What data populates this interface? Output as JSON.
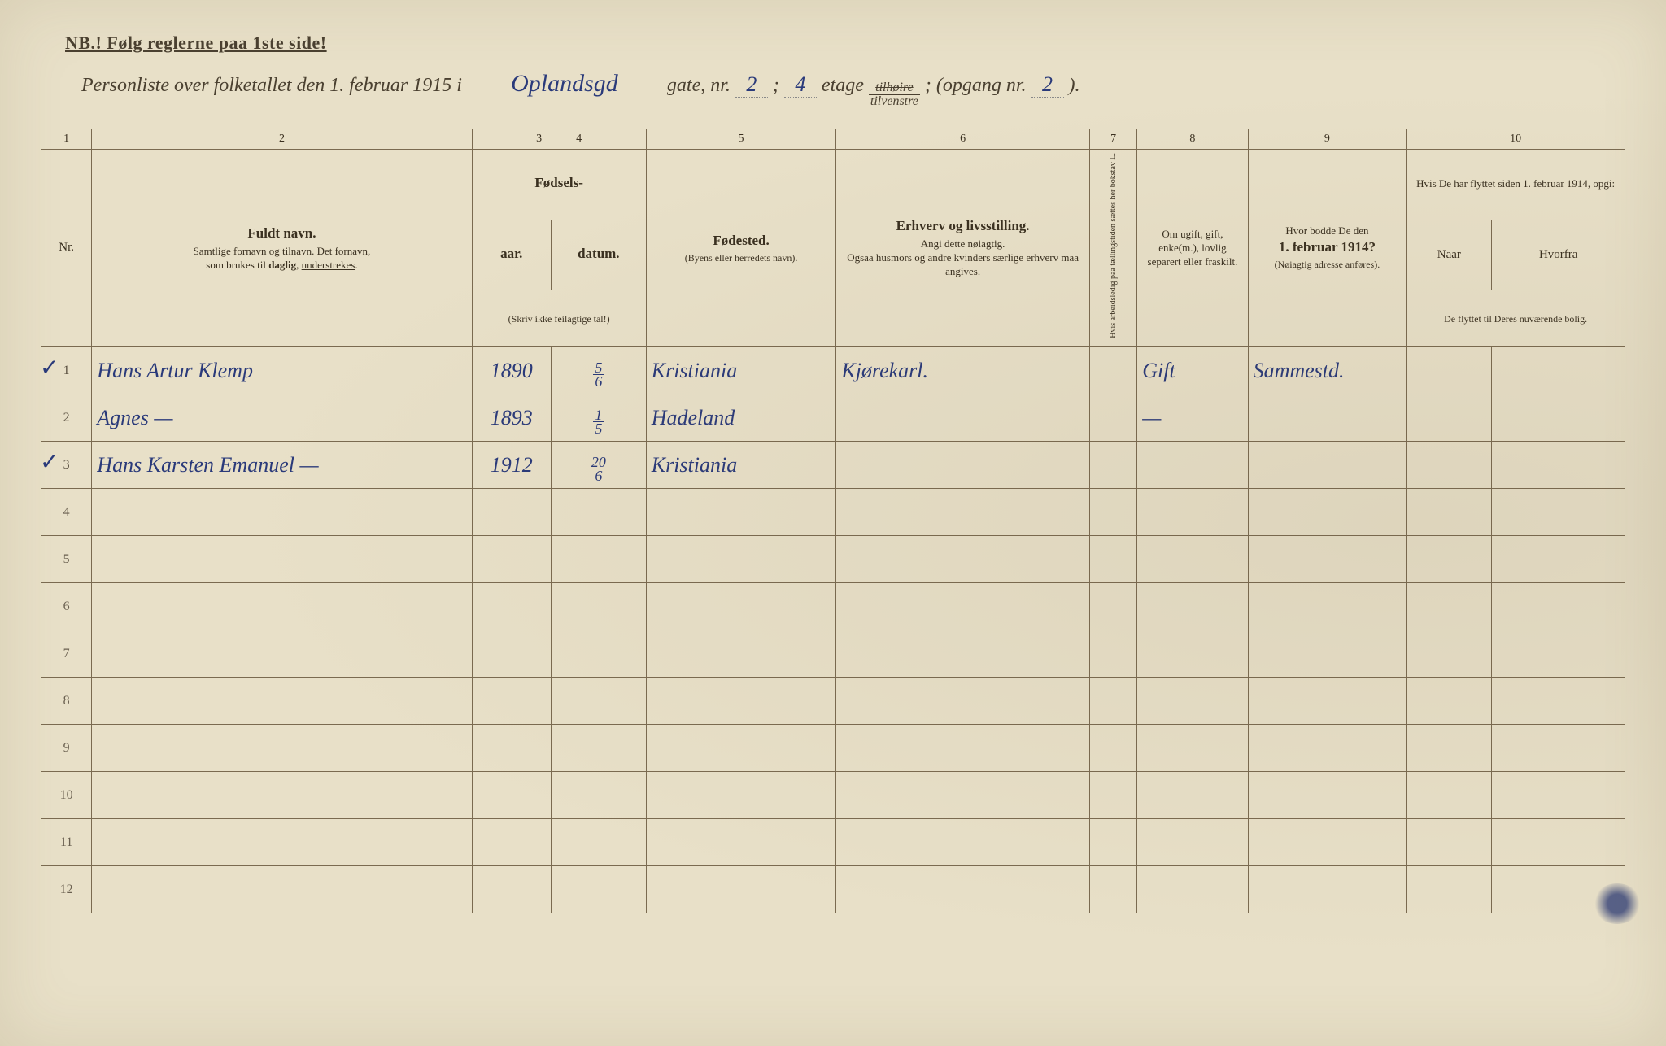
{
  "header": {
    "nb": "NB.! Følg reglerne paa 1ste side!",
    "title_prefix": "Personliste over folketallet den 1. februar 1915 i",
    "street": "Oplandsgd",
    "gate_label": "gate, nr.",
    "gate_nr": "2",
    "etage_sep": ";",
    "etage_nr": "4",
    "etage_label": "etage",
    "tilhoire": "tilhøire",
    "tilvenstre": "tilvenstre",
    "opgang_label": "; (opgang nr.",
    "opgang_nr": "2",
    "opgang_close": ")."
  },
  "colnums": [
    "1",
    "2",
    "3",
    "4",
    "5",
    "6",
    "7",
    "8",
    "9",
    "10"
  ],
  "headers": {
    "nr": "Nr.",
    "name_main": "Fuldt navn.",
    "name_sub1": "Samtlige fornavn og tilnavn.   Det fornavn,",
    "name_sub2": "som brukes til daglig, understrekes.",
    "birth_main": "Fødsels-",
    "birth_aar": "aar.",
    "birth_datum": "datum.",
    "birth_paren": "(Skriv ikke feilagtige tal!)",
    "place_main": "Fødested.",
    "place_sub": "(Byens eller herredets navn).",
    "occ_main": "Erhverv og livsstilling.",
    "occ_sub1": "Angi dette nøiagtig.",
    "occ_sub2": "Ogsaa husmors og andre kvinders særlige erhverv maa angives.",
    "col7": "Hvis arbeidsledig paa tællingstiden sættes her bokstav L.",
    "col8_main": "Om ugift, gift, enke(m.), lovlig separert eller fraskilt.",
    "col9_main": "Hvor bodde De den",
    "col9_bold": "1. februar 1914?",
    "col9_sub": "(Nøiagtig adresse anføres).",
    "col10_main": "Hvis De har flyttet siden 1. februar 1914, opgi:",
    "col10_naar": "Naar",
    "col10_hvorfra": "Hvorfra",
    "col10_sub": "De flyttet til Deres nuværende bolig."
  },
  "rows": [
    {
      "nr": "1",
      "check": "✓",
      "name": "Hans Artur Klemp",
      "year": "1890",
      "date_top": "5",
      "date_bot": "6",
      "place": "Kristiania",
      "occ": "Kjørekarl.",
      "col7": "",
      "marital": "Gift",
      "prev": "Sammestd.",
      "naar": "",
      "hvorfra": ""
    },
    {
      "nr": "2",
      "check": "",
      "name": "Agnes              —",
      "year": "1893",
      "date_top": "1",
      "date_bot": "5",
      "place": "Hadeland",
      "occ": "",
      "col7": "",
      "marital": "—",
      "prev": "",
      "naar": "",
      "hvorfra": ""
    },
    {
      "nr": "3",
      "check": "✓",
      "name": "Hans Karsten Emanuel —",
      "year": "1912",
      "date_top": "20",
      "date_bot": "6",
      "place": "Kristiania",
      "occ": "",
      "col7": "",
      "marital": "",
      "prev": "",
      "naar": "",
      "hvorfra": ""
    }
  ],
  "empty_rows": [
    "4",
    "5",
    "6",
    "7",
    "8",
    "9",
    "10",
    "11",
    "12"
  ],
  "colors": {
    "paper": "#e8e0c8",
    "ink_print": "#4a4030",
    "ink_hand": "#2a3a7a",
    "border": "#7a6a50"
  },
  "col_widths_pct": [
    3.2,
    24,
    5,
    6,
    12,
    16,
    3,
    7,
    10,
    5.4,
    8.4
  ]
}
